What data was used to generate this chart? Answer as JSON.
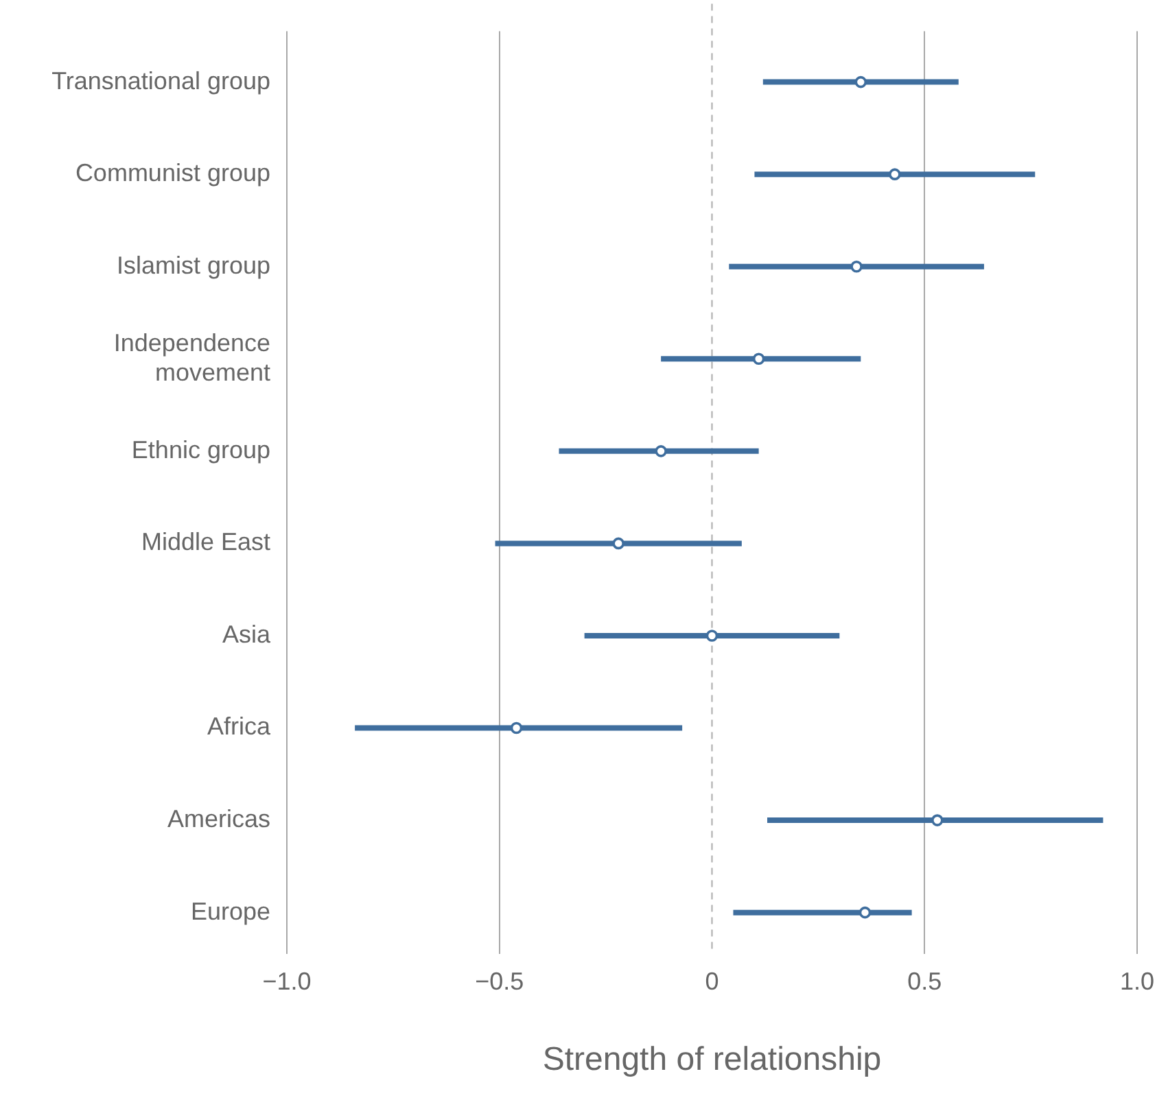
{
  "chart_data": {
    "type": "scatter",
    "orientation": "horizontal",
    "xlabel": "Strength of relationship",
    "categories": [
      "Transnational group",
      "Communist group",
      "Islamist group",
      "Independence movement",
      "Ethnic group",
      "Middle East",
      "Asia",
      "Africa",
      "Americas",
      "Europe"
    ],
    "values": [
      0.35,
      0.43,
      0.34,
      0.11,
      -0.12,
      -0.22,
      0,
      -0.46,
      0.53,
      0.36
    ],
    "errors": [
      [
        0.12,
        0.58
      ],
      [
        0.1,
        0.76
      ],
      [
        0.04,
        0.64
      ],
      [
        -0.12,
        0.35
      ],
      [
        -0.36,
        0.11
      ],
      [
        -0.51,
        0.07
      ],
      [
        -0.3,
        0.3
      ],
      [
        -0.84,
        -0.07
      ],
      [
        0.13,
        0.92
      ],
      [
        0.05,
        0.47
      ]
    ],
    "color": "#3f6e9e",
    "marker": "circle",
    "xlim": [
      -1,
      1
    ],
    "xticks": [
      {
        "value": -1,
        "label": "−1.0"
      },
      {
        "value": -0.5,
        "label": "−0.5"
      },
      0,
      {
        "value": 0.5,
        "label": "0.5"
      },
      {
        "value": 1,
        "label": "1.0"
      }
    ],
    "grid": "x",
    "ref_lines": [
      {
        "axis": "x",
        "value": 0,
        "line_style": "dashed",
        "color": "#aaaaaa"
      }
    ]
  }
}
